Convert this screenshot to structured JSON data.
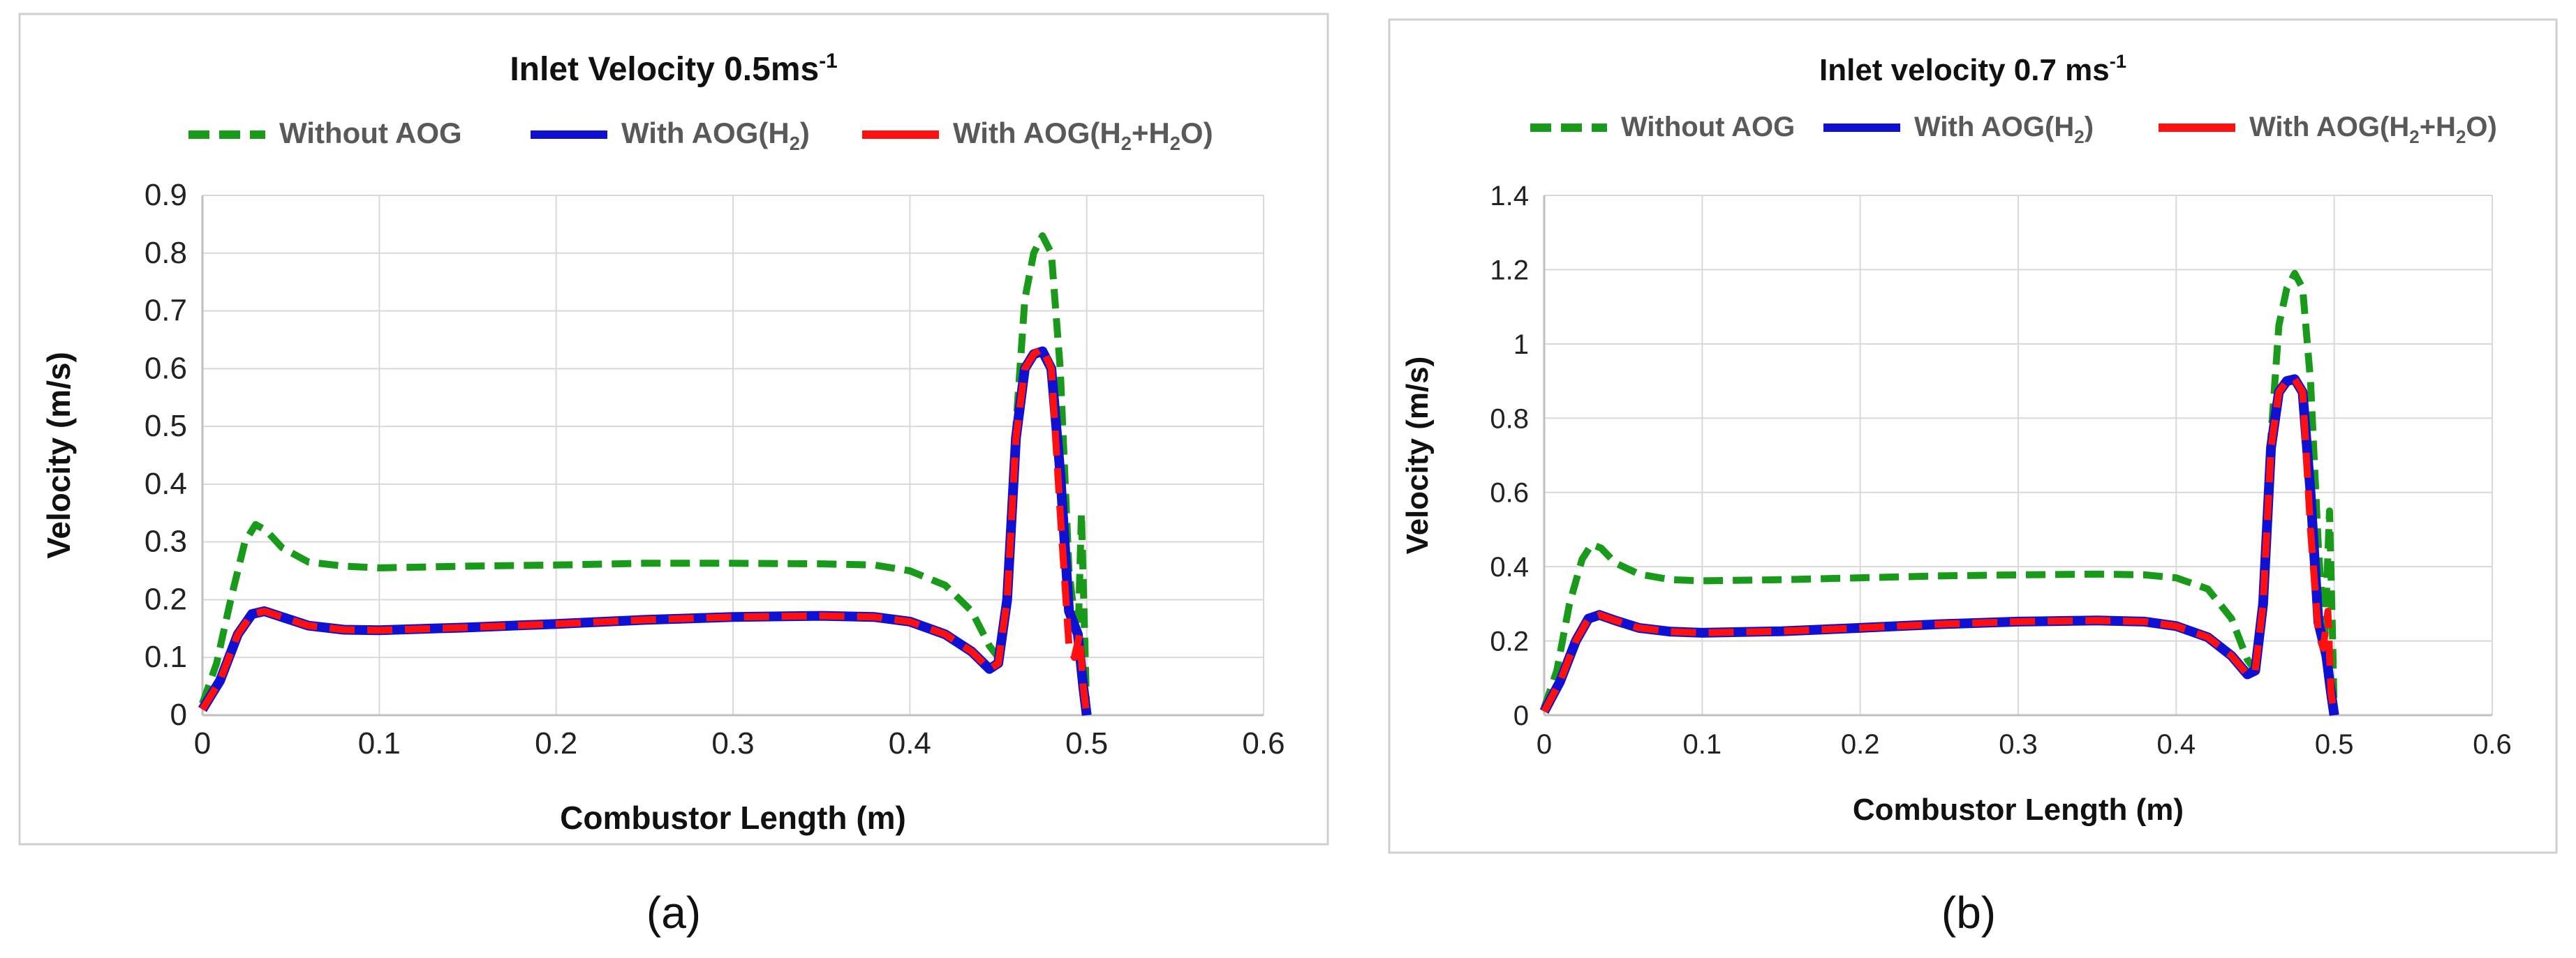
{
  "colors": {
    "without": "#1a9a1a",
    "h2": "#1010d0",
    "h2h2o": "#ff1010",
    "grid": "#d9d9d9",
    "axis": "#bfbfbf",
    "text": "#595959",
    "caption": "#111111"
  },
  "chart_data": [
    {
      "type": "line",
      "panel": "a",
      "title": "Inlet Velocity 0.5ms",
      "title_superscript": "-1",
      "caption": "(a)",
      "xlabel": "Combustor Length (m)",
      "ylabel": "Velocity (m/s)",
      "xlim": [
        0,
        0.6
      ],
      "ylim": [
        0,
        0.9
      ],
      "xticks": [
        "0",
        "0.1",
        "0.2",
        "0.3",
        "0.4",
        "0.5",
        "0.6"
      ],
      "yticks": [
        "0",
        "0.1",
        "0.2",
        "0.3",
        "0.4",
        "0.5",
        "0.6",
        "0.7",
        "0.8",
        "0.9"
      ],
      "legend": [
        {
          "key": "without",
          "label": "Without AOG",
          "dashed": true
        },
        {
          "key": "h2",
          "label": "With AOG(H",
          "sub1": "2",
          "tail": ")",
          "dashed": false
        },
        {
          "key": "h2h2o",
          "label": "With AOG(H",
          "sub1": "2",
          "mid": "+H",
          "sub2": "2",
          "tail": "O)",
          "dashed": false
        }
      ],
      "series": [
        {
          "key": "without",
          "name": "Without AOG",
          "x": [
            0,
            0.008,
            0.016,
            0.024,
            0.03,
            0.036,
            0.045,
            0.06,
            0.08,
            0.1,
            0.15,
            0.2,
            0.25,
            0.3,
            0.35,
            0.38,
            0.4,
            0.42,
            0.435,
            0.445,
            0.45,
            0.455,
            0.46,
            0.465,
            0.47,
            0.475,
            0.48,
            0.485,
            0.49,
            0.495,
            0.497,
            0.499,
            0.5
          ],
          "y": [
            0.02,
            0.09,
            0.2,
            0.3,
            0.33,
            0.32,
            0.29,
            0.265,
            0.258,
            0.255,
            0.258,
            0.26,
            0.263,
            0.263,
            0.262,
            0.26,
            0.25,
            0.225,
            0.18,
            0.12,
            0.1,
            0.2,
            0.5,
            0.72,
            0.8,
            0.83,
            0.8,
            0.6,
            0.25,
            0.12,
            0.35,
            0.12,
            0
          ]
        },
        {
          "key": "h2",
          "name": "With AOG(H2)",
          "x": [
            0,
            0.01,
            0.02,
            0.028,
            0.035,
            0.045,
            0.06,
            0.08,
            0.1,
            0.15,
            0.2,
            0.25,
            0.3,
            0.35,
            0.38,
            0.4,
            0.42,
            0.435,
            0.445,
            0.45,
            0.455,
            0.46,
            0.465,
            0.47,
            0.475,
            0.48,
            0.485,
            0.49,
            0.495,
            0.498,
            0.5
          ],
          "y": [
            0.01,
            0.06,
            0.14,
            0.175,
            0.18,
            0.17,
            0.155,
            0.148,
            0.147,
            0.152,
            0.158,
            0.165,
            0.17,
            0.172,
            0.17,
            0.162,
            0.14,
            0.11,
            0.08,
            0.09,
            0.2,
            0.48,
            0.6,
            0.625,
            0.63,
            0.6,
            0.42,
            0.18,
            0.14,
            0.05,
            0
          ]
        },
        {
          "key": "h2h2o",
          "name": "With AOG(H2+H2O)",
          "x": [
            0,
            0.01,
            0.02,
            0.028,
            0.035,
            0.045,
            0.06,
            0.08,
            0.1,
            0.15,
            0.2,
            0.25,
            0.3,
            0.35,
            0.38,
            0.4,
            0.42,
            0.435,
            0.445,
            0.45,
            0.455,
            0.46,
            0.465,
            0.47,
            0.475,
            0.48,
            0.485,
            0.49,
            0.493,
            0.496,
            0.498,
            0.5
          ],
          "y": [
            0.01,
            0.06,
            0.14,
            0.175,
            0.18,
            0.17,
            0.155,
            0.148,
            0.147,
            0.152,
            0.158,
            0.165,
            0.17,
            0.172,
            0.17,
            0.162,
            0.14,
            0.11,
            0.08,
            0.09,
            0.2,
            0.48,
            0.6,
            0.625,
            0.635,
            0.6,
            0.35,
            0.12,
            0.1,
            0.14,
            0.05,
            0
          ]
        }
      ]
    },
    {
      "type": "line",
      "panel": "b",
      "title": "Inlet velocity 0.7 ms",
      "title_superscript": "-1",
      "caption": "(b)",
      "xlabel": "Combustor Length (m)",
      "ylabel": "Velocity (m/s)",
      "xlim": [
        0,
        0.6
      ],
      "ylim": [
        0,
        1.4
      ],
      "xticks": [
        "0",
        "0.1",
        "0.2",
        "0.3",
        "0.4",
        "0.5",
        "0.6"
      ],
      "yticks": [
        "0",
        "0.2",
        "0.4",
        "0.6",
        "0.8",
        "1",
        "1.2",
        "1.4"
      ],
      "legend": [
        {
          "key": "without",
          "label": "Without AOG",
          "dashed": true
        },
        {
          "key": "h2",
          "label": "With AOG(H",
          "sub1": "2",
          "tail": ")",
          "dashed": false
        },
        {
          "key": "h2h2o",
          "label": "With AOG(H",
          "sub1": "2",
          "mid": "+H",
          "sub2": "2",
          "tail": "O)",
          "dashed": false
        }
      ],
      "series": [
        {
          "key": "without",
          "name": "Without AOG",
          "x": [
            0,
            0.008,
            0.016,
            0.024,
            0.03,
            0.036,
            0.045,
            0.06,
            0.08,
            0.1,
            0.15,
            0.2,
            0.25,
            0.3,
            0.35,
            0.38,
            0.4,
            0.42,
            0.435,
            0.445,
            0.45,
            0.455,
            0.46,
            0.465,
            0.47,
            0.475,
            0.48,
            0.485,
            0.49,
            0.494,
            0.497,
            0.499,
            0.5
          ],
          "y": [
            0.02,
            0.12,
            0.3,
            0.42,
            0.46,
            0.45,
            0.41,
            0.38,
            0.365,
            0.362,
            0.365,
            0.37,
            0.375,
            0.378,
            0.38,
            0.378,
            0.37,
            0.34,
            0.26,
            0.15,
            0.12,
            0.3,
            0.75,
            1.05,
            1.15,
            1.19,
            1.15,
            0.9,
            0.45,
            0.2,
            0.55,
            0.2,
            0
          ]
        },
        {
          "key": "h2",
          "name": "With AOG(H2)",
          "x": [
            0,
            0.01,
            0.02,
            0.028,
            0.035,
            0.045,
            0.06,
            0.08,
            0.1,
            0.15,
            0.2,
            0.25,
            0.3,
            0.35,
            0.38,
            0.4,
            0.42,
            0.435,
            0.445,
            0.45,
            0.455,
            0.46,
            0.465,
            0.47,
            0.475,
            0.48,
            0.485,
            0.49,
            0.495,
            0.498,
            0.5
          ],
          "y": [
            0.01,
            0.09,
            0.2,
            0.26,
            0.27,
            0.255,
            0.235,
            0.225,
            0.222,
            0.226,
            0.235,
            0.245,
            0.252,
            0.255,
            0.252,
            0.24,
            0.21,
            0.16,
            0.11,
            0.12,
            0.3,
            0.72,
            0.87,
            0.9,
            0.905,
            0.87,
            0.6,
            0.25,
            0.16,
            0.06,
            0
          ]
        },
        {
          "key": "h2h2o",
          "name": "With AOG(H2+H2O)",
          "x": [
            0,
            0.01,
            0.02,
            0.028,
            0.035,
            0.045,
            0.06,
            0.08,
            0.1,
            0.15,
            0.2,
            0.25,
            0.3,
            0.35,
            0.38,
            0.4,
            0.42,
            0.435,
            0.445,
            0.45,
            0.455,
            0.46,
            0.465,
            0.47,
            0.475,
            0.48,
            0.485,
            0.49,
            0.493,
            0.496,
            0.498,
            0.5
          ],
          "y": [
            0.01,
            0.09,
            0.2,
            0.26,
            0.27,
            0.255,
            0.235,
            0.225,
            0.222,
            0.226,
            0.235,
            0.245,
            0.252,
            0.255,
            0.252,
            0.24,
            0.21,
            0.16,
            0.11,
            0.12,
            0.3,
            0.72,
            0.87,
            0.9,
            0.905,
            0.87,
            0.5,
            0.22,
            0.18,
            0.28,
            0.06,
            0
          ]
        }
      ]
    }
  ]
}
